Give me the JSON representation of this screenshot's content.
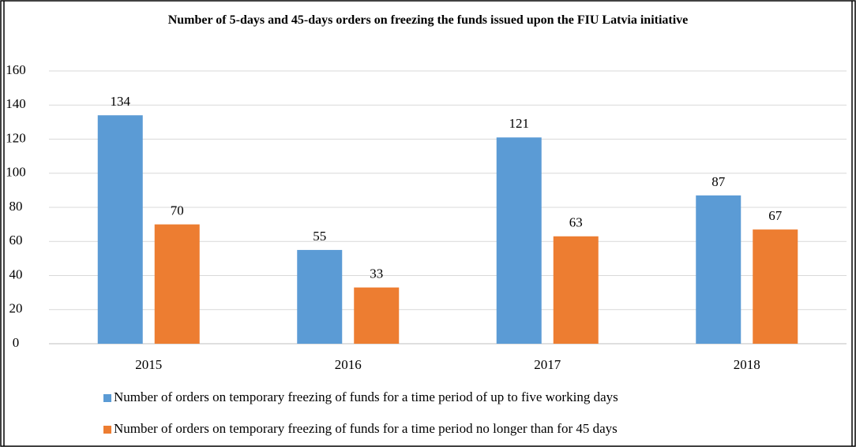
{
  "chart_data": {
    "type": "bar",
    "title": "Number of 5-days and 45-days orders on freezing the funds issued upon the FIU Latvia initiative",
    "categories": [
      "2015",
      "2016",
      "2017",
      "2018"
    ],
    "series": [
      {
        "name": "Number of orders on temporary freezing of funds for a time period of up to five working days",
        "color": "#5b9bd5",
        "values": [
          134,
          55,
          121,
          87
        ]
      },
      {
        "name": "Number of orders on temporary freezing of funds for a time period no longer than for 45 days",
        "color": "#ed7d31",
        "values": [
          70,
          33,
          63,
          67
        ]
      }
    ],
    "ylim": [
      0,
      160
    ],
    "yticks": [
      0,
      20,
      40,
      60,
      80,
      100,
      120,
      140,
      160
    ],
    "grid": true,
    "legend": "bottom"
  }
}
